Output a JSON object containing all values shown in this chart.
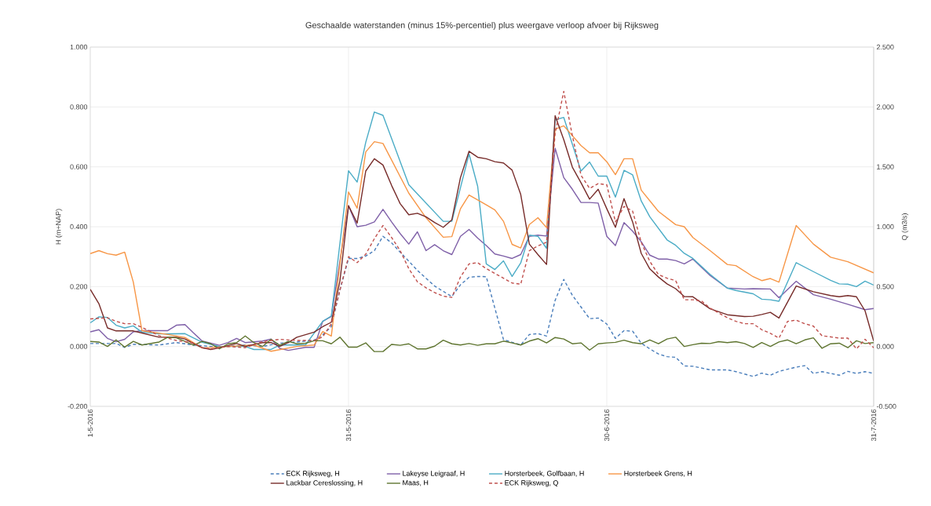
{
  "chart_data": {
    "type": "line",
    "title": "Geschaalde waterstanden (minus 15%-percentiel) plus weergave verloop afvoer bij Rijksweg",
    "ylabel": "H (m+NAP)",
    "y2label": "Q (m3/s)",
    "xlim": [
      "2016-05-01",
      "2016-07-31"
    ],
    "xticks": [
      {
        "value": "2016-05-01",
        "label": "1-5-2016"
      },
      {
        "value": "2016-05-31",
        "label": "31-5-2016"
      },
      {
        "value": "2016-06-30",
        "label": "30-6-2016"
      },
      {
        "value": "2016-07-31",
        "label": "31-7-2016"
      }
    ],
    "ylim": [
      -0.2,
      1.0
    ],
    "yticks": [
      {
        "value": -0.2,
        "label": "-0.200"
      },
      {
        "value": 0,
        "label": "0.000"
      },
      {
        "value": 0.2,
        "label": "0.200"
      },
      {
        "value": 0.4,
        "label": "0.400"
      },
      {
        "value": 0.6,
        "label": "0.600"
      },
      {
        "value": 0.8,
        "label": "0.800"
      },
      {
        "value": 1.0,
        "label": "1.000"
      }
    ],
    "y2lim": [
      -0.5,
      2.5
    ],
    "y2ticks": [
      {
        "value": -0.5,
        "label": "-0.500"
      },
      {
        "value": 0,
        "label": "0.000"
      },
      {
        "value": 0.5,
        "label": "0.500"
      },
      {
        "value": 1.0,
        "label": "1.000"
      },
      {
        "value": 1.5,
        "label": "1.500"
      },
      {
        "value": 2.0,
        "label": "2.000"
      },
      {
        "value": 2.5,
        "label": "2.500"
      }
    ],
    "grid": true,
    "legend": "bottom",
    "series": [
      {
        "name": "ECK Rijksweg, H",
        "color": "#4a7ebb",
        "line_style": "dashed",
        "x": [
          "2016-05-01",
          "2016-05-04",
          "2016-05-05",
          "2016-05-06",
          "2016-05-09",
          "2016-05-11",
          "2016-05-13",
          "2016-05-15",
          "2016-05-17",
          "2016-05-19",
          "2016-05-21",
          "2016-05-23",
          "2016-05-25",
          "2016-05-27",
          "2016-05-28",
          "2016-05-29",
          "2016-05-30",
          "2016-05-31",
          "2016-06-01",
          "2016-06-02",
          "2016-06-03",
          "2016-06-04",
          "2016-06-05",
          "2016-06-06",
          "2016-06-07",
          "2016-06-08",
          "2016-06-09",
          "2016-06-10",
          "2016-06-11",
          "2016-06-12",
          "2016-06-13",
          "2016-06-14",
          "2016-06-15",
          "2016-06-16",
          "2016-06-17",
          "2016-06-18",
          "2016-06-19",
          "2016-06-20",
          "2016-06-21",
          "2016-06-22",
          "2016-06-23",
          "2016-06-24",
          "2016-06-25",
          "2016-06-26",
          "2016-06-27",
          "2016-06-28",
          "2016-06-29",
          "2016-06-30",
          "2016-07-01",
          "2016-07-02",
          "2016-07-03",
          "2016-07-04",
          "2016-07-05",
          "2016-07-06",
          "2016-07-07",
          "2016-07-08",
          "2016-07-09",
          "2016-07-10",
          "2016-07-12",
          "2016-07-14",
          "2016-07-15",
          "2016-07-17",
          "2016-07-18",
          "2016-07-19",
          "2016-07-20",
          "2016-07-22",
          "2016-07-23",
          "2016-07-24",
          "2016-07-25",
          "2016-07-27",
          "2016-07-28",
          "2016-07-29",
          "2016-07-30",
          "2016-07-31"
        ],
        "values": [
          0.01,
          0.01,
          -0.003,
          0.007,
          0.005,
          0.013,
          0.005,
          0.0,
          0.0,
          0.005,
          0.0,
          0.011,
          0.015,
          0.021,
          0.039,
          0.066,
          0.189,
          0.294,
          0.294,
          0.302,
          0.32,
          0.368,
          0.346,
          0.315,
          0.285,
          0.254,
          0.228,
          0.202,
          0.184,
          0.167,
          0.206,
          0.231,
          0.234,
          0.233,
          0.128,
          0.023,
          0.014,
          0.005,
          0.04,
          0.043,
          0.035,
          0.154,
          0.224,
          0.171,
          0.132,
          0.093,
          0.095,
          0.075,
          0.027,
          0.053,
          0.051,
          0.011,
          -0.008,
          -0.025,
          -0.034,
          -0.036,
          -0.065,
          -0.066,
          -0.078,
          -0.078,
          -0.084,
          -0.1,
          -0.089,
          -0.096,
          -0.083,
          -0.069,
          -0.064,
          -0.09,
          -0.084,
          -0.096,
          -0.083,
          -0.09,
          -0.084,
          -0.09
        ]
      },
      {
        "name": "Lakeyse Leigraaf, H",
        "color": "#7f60a8",
        "line_style": "solid",
        "x": [
          "2016-05-01",
          "2016-05-02",
          "2016-05-03",
          "2016-05-04",
          "2016-05-05",
          "2016-05-06",
          "2016-05-07",
          "2016-05-10",
          "2016-05-11",
          "2016-05-12",
          "2016-05-13",
          "2016-05-14",
          "2016-05-16",
          "2016-05-17",
          "2016-05-18",
          "2016-05-19",
          "2016-05-21",
          "2016-05-22",
          "2016-05-23",
          "2016-05-24",
          "2016-05-26",
          "2016-05-27",
          "2016-05-28",
          "2016-05-29",
          "2016-05-31",
          "2016-06-01",
          "2016-06-02",
          "2016-06-03",
          "2016-06-04",
          "2016-06-05",
          "2016-06-06",
          "2016-06-07",
          "2016-06-08",
          "2016-06-09",
          "2016-06-10",
          "2016-06-11",
          "2016-06-12",
          "2016-06-13",
          "2016-06-14",
          "2016-06-15",
          "2016-06-16",
          "2016-06-17",
          "2016-06-18",
          "2016-06-19",
          "2016-06-20",
          "2016-06-21",
          "2016-06-22",
          "2016-06-23",
          "2016-06-24",
          "2016-06-25",
          "2016-06-26",
          "2016-06-27",
          "2016-06-28",
          "2016-06-29",
          "2016-06-30",
          "2016-07-01",
          "2016-07-02",
          "2016-07-03",
          "2016-07-04",
          "2016-07-05",
          "2016-07-06",
          "2016-07-07",
          "2016-07-08",
          "2016-07-09",
          "2016-07-10",
          "2016-07-12",
          "2016-07-14",
          "2016-07-16",
          "2016-07-17",
          "2016-07-19",
          "2016-07-20",
          "2016-07-22",
          "2016-07-24",
          "2016-07-26",
          "2016-07-28",
          "2016-07-30",
          "2016-07-31"
        ],
        "values": [
          0.049,
          0.056,
          0.027,
          0.016,
          0.024,
          0.049,
          0.053,
          0.053,
          0.071,
          0.073,
          0.045,
          0.018,
          0.004,
          0.013,
          0.027,
          0.013,
          0.018,
          0.025,
          -0.006,
          -0.013,
          -0.003,
          -0.003,
          0.084,
          0.1,
          0.47,
          0.4,
          0.405,
          0.416,
          0.458,
          0.416,
          0.377,
          0.342,
          0.383,
          0.32,
          0.34,
          0.32,
          0.307,
          0.368,
          0.391,
          0.362,
          0.337,
          0.309,
          0.302,
          0.294,
          0.307,
          0.368,
          0.372,
          0.369,
          0.662,
          0.564,
          0.525,
          0.481,
          0.481,
          0.479,
          0.368,
          0.337,
          0.414,
          0.385,
          0.35,
          0.305,
          0.292,
          0.292,
          0.287,
          0.276,
          0.292,
          0.237,
          0.195,
          0.192,
          0.193,
          0.192,
          0.163,
          0.218,
          0.173,
          0.158,
          0.141,
          0.123,
          0.127
        ]
      },
      {
        "name": "Horsterbeek, Golfbaan, H",
        "color": "#4bacc6",
        "line_style": "solid",
        "x": [
          "2016-05-01",
          "2016-05-02",
          "2016-05-03",
          "2016-05-04",
          "2016-05-05",
          "2016-05-06",
          "2016-05-07",
          "2016-05-09",
          "2016-05-12",
          "2016-05-14",
          "2016-05-16",
          "2016-05-19",
          "2016-05-20",
          "2016-05-22",
          "2016-05-23",
          "2016-05-26",
          "2016-05-28",
          "2016-05-29",
          "2016-05-31",
          "2016-06-01",
          "2016-06-02",
          "2016-06-03",
          "2016-06-04",
          "2016-06-07",
          "2016-06-11",
          "2016-06-12",
          "2016-06-14",
          "2016-06-15",
          "2016-06-16",
          "2016-06-17",
          "2016-06-18",
          "2016-06-19",
          "2016-06-20",
          "2016-06-21",
          "2016-06-22",
          "2016-06-23",
          "2016-06-24",
          "2016-06-25",
          "2016-06-27",
          "2016-06-28",
          "2016-06-29",
          "2016-06-30",
          "2016-07-01",
          "2016-07-02",
          "2016-07-03",
          "2016-07-04",
          "2016-07-05",
          "2016-07-07",
          "2016-07-08",
          "2016-07-09",
          "2016-07-10",
          "2016-07-12",
          "2016-07-14",
          "2016-07-15",
          "2016-07-17",
          "2016-07-18",
          "2016-07-19",
          "2016-07-20",
          "2016-07-22",
          "2016-07-24",
          "2016-07-26",
          "2016-07-27",
          "2016-07-28",
          "2016-07-29",
          "2016-07-30",
          "2016-07-31"
        ],
        "values": [
          0.079,
          0.099,
          0.097,
          0.071,
          0.062,
          0.069,
          0.048,
          0.042,
          0.043,
          0.014,
          0.0,
          0.0,
          -0.01,
          -0.01,
          0.005,
          0.005,
          0.084,
          0.102,
          0.587,
          0.549,
          0.682,
          0.783,
          0.772,
          0.54,
          0.418,
          0.418,
          0.643,
          0.535,
          0.276,
          0.257,
          0.286,
          0.234,
          0.279,
          0.372,
          0.368,
          0.328,
          0.757,
          0.765,
          0.586,
          0.616,
          0.569,
          0.569,
          0.499,
          0.588,
          0.573,
          0.486,
          0.433,
          0.356,
          0.338,
          0.311,
          0.294,
          0.241,
          0.195,
          0.187,
          0.176,
          0.158,
          0.156,
          0.151,
          0.28,
          0.25,
          0.221,
          0.209,
          0.208,
          0.2,
          0.218,
          0.205
        ]
      },
      {
        "name": "Horsterbeek Grens, H",
        "color": "#f79646",
        "line_style": "solid",
        "x": [
          "2016-05-01",
          "2016-05-02",
          "2016-05-03",
          "2016-05-04",
          "2016-05-05",
          "2016-05-06",
          "2016-05-07",
          "2016-05-10",
          "2016-05-12",
          "2016-05-14",
          "2016-05-17",
          "2016-05-20",
          "2016-05-22",
          "2016-05-25",
          "2016-05-27",
          "2016-05-28",
          "2016-05-29",
          "2016-05-31",
          "2016-06-01",
          "2016-06-02",
          "2016-06-03",
          "2016-06-04",
          "2016-06-07",
          "2016-06-09",
          "2016-06-11",
          "2016-06-12",
          "2016-06-13",
          "2016-06-14",
          "2016-06-16",
          "2016-06-17",
          "2016-06-18",
          "2016-06-19",
          "2016-06-20",
          "2016-06-21",
          "2016-06-22",
          "2016-06-23",
          "2016-06-24",
          "2016-06-25",
          "2016-06-27",
          "2016-06-28",
          "2016-06-29",
          "2016-06-30",
          "2016-07-01",
          "2016-07-02",
          "2016-07-03",
          "2016-07-04",
          "2016-07-06",
          "2016-07-08",
          "2016-07-09",
          "2016-07-10",
          "2016-07-12",
          "2016-07-14",
          "2016-07-15",
          "2016-07-17",
          "2016-07-18",
          "2016-07-19",
          "2016-07-20",
          "2016-07-22",
          "2016-07-24",
          "2016-07-26",
          "2016-07-28",
          "2016-07-31"
        ],
        "values": [
          0.31,
          0.32,
          0.31,
          0.305,
          0.315,
          0.215,
          0.053,
          0.04,
          0.03,
          -0.005,
          0.0,
          0.005,
          -0.016,
          0.0,
          0.005,
          0.05,
          0.035,
          0.516,
          0.462,
          0.65,
          0.684,
          0.678,
          0.512,
          0.43,
          0.365,
          0.367,
          0.46,
          0.506,
          0.473,
          0.456,
          0.418,
          0.341,
          0.329,
          0.407,
          0.43,
          0.397,
          0.726,
          0.737,
          0.671,
          0.647,
          0.647,
          0.617,
          0.574,
          0.627,
          0.627,
          0.522,
          0.451,
          0.407,
          0.4,
          0.364,
          0.32,
          0.274,
          0.27,
          0.233,
          0.22,
          0.227,
          0.215,
          0.404,
          0.342,
          0.298,
          0.283,
          0.246
        ]
      },
      {
        "name": "Lackbar Cereslossing, H",
        "color": "#772c2a",
        "line_style": "solid",
        "x": [
          "2016-05-01",
          "2016-05-02",
          "2016-05-03",
          "2016-05-04",
          "2016-05-06",
          "2016-05-07",
          "2016-05-09",
          "2016-05-11",
          "2016-05-12",
          "2016-05-13",
          "2016-05-14",
          "2016-05-15",
          "2016-05-16",
          "2016-05-18",
          "2016-05-19",
          "2016-05-21",
          "2016-05-22",
          "2016-05-23",
          "2016-05-24",
          "2016-05-25",
          "2016-05-27",
          "2016-05-28",
          "2016-05-29",
          "2016-05-30",
          "2016-05-31",
          "2016-06-01",
          "2016-06-02",
          "2016-06-03",
          "2016-06-04",
          "2016-06-05",
          "2016-06-06",
          "2016-06-07",
          "2016-06-08",
          "2016-06-09",
          "2016-06-10",
          "2016-06-11",
          "2016-06-12",
          "2016-06-13",
          "2016-06-14",
          "2016-06-15",
          "2016-06-16",
          "2016-06-17",
          "2016-06-18",
          "2016-06-19",
          "2016-06-20",
          "2016-06-21",
          "2016-06-22",
          "2016-06-23",
          "2016-06-24",
          "2016-06-25",
          "2016-06-26",
          "2016-06-27",
          "2016-06-28",
          "2016-06-29",
          "2016-06-30",
          "2016-07-01",
          "2016-07-02",
          "2016-07-03",
          "2016-07-04",
          "2016-07-05",
          "2016-07-06",
          "2016-07-07",
          "2016-07-08",
          "2016-07-09",
          "2016-07-10",
          "2016-07-12",
          "2016-07-14",
          "2016-07-16",
          "2016-07-17",
          "2016-07-18",
          "2016-07-19",
          "2016-07-20",
          "2016-07-22",
          "2016-07-24",
          "2016-07-26",
          "2016-07-27",
          "2016-07-28",
          "2016-07-29",
          "2016-07-30",
          "2016-07-31"
        ],
        "values": [
          0.191,
          0.143,
          0.062,
          0.052,
          0.052,
          0.045,
          0.031,
          0.031,
          0.025,
          0.009,
          -0.004,
          -0.01,
          -0.004,
          0.01,
          0.0,
          0.013,
          0.013,
          0.0,
          0.013,
          0.031,
          0.048,
          0.066,
          0.081,
          0.219,
          0.47,
          0.412,
          0.586,
          0.627,
          0.606,
          0.538,
          0.477,
          0.44,
          0.445,
          0.433,
          0.414,
          0.398,
          0.423,
          0.564,
          0.652,
          0.632,
          0.627,
          0.617,
          0.613,
          0.589,
          0.508,
          0.342,
          0.307,
          0.274,
          0.771,
          0.691,
          0.599,
          0.547,
          0.492,
          0.525,
          0.46,
          0.398,
          0.494,
          0.416,
          0.311,
          0.259,
          0.232,
          0.209,
          0.193,
          0.167,
          0.166,
          0.126,
          0.106,
          0.1,
          0.101,
          0.107,
          0.114,
          0.095,
          0.202,
          0.183,
          0.17,
          0.166,
          0.17,
          0.166,
          0.119,
          0.018
        ]
      },
      {
        "name": "Maas, H",
        "color": "#5f7530",
        "line_style": "solid",
        "x": [
          "2016-05-01",
          "2016-05-02",
          "2016-05-03",
          "2016-05-04",
          "2016-05-05",
          "2016-05-06",
          "2016-05-07",
          "2016-05-09",
          "2016-05-10",
          "2016-05-11",
          "2016-05-12",
          "2016-05-13",
          "2016-05-14",
          "2016-05-15",
          "2016-05-16",
          "2016-05-17",
          "2016-05-18",
          "2016-05-19",
          "2016-05-20",
          "2016-05-21",
          "2016-05-22",
          "2016-05-23",
          "2016-05-24",
          "2016-05-25",
          "2016-05-26",
          "2016-05-27",
          "2016-05-28",
          "2016-05-29",
          "2016-05-30",
          "2016-05-31",
          "2016-06-01",
          "2016-06-02",
          "2016-06-03",
          "2016-06-04",
          "2016-06-05",
          "2016-06-06",
          "2016-06-07",
          "2016-06-08",
          "2016-06-09",
          "2016-06-10",
          "2016-06-11",
          "2016-06-12",
          "2016-06-13",
          "2016-06-14",
          "2016-06-15",
          "2016-06-16",
          "2016-06-17",
          "2016-06-18",
          "2016-06-19",
          "2016-06-20",
          "2016-06-21",
          "2016-06-22",
          "2016-06-23",
          "2016-06-24",
          "2016-06-25",
          "2016-06-26",
          "2016-06-27",
          "2016-06-28",
          "2016-06-29",
          "2016-06-30",
          "2016-07-01",
          "2016-07-02",
          "2016-07-03",
          "2016-07-04",
          "2016-07-05",
          "2016-07-06",
          "2016-07-07",
          "2016-07-08",
          "2016-07-09",
          "2016-07-10",
          "2016-07-11",
          "2016-07-12",
          "2016-07-13",
          "2016-07-14",
          "2016-07-15",
          "2016-07-16",
          "2016-07-17",
          "2016-07-18",
          "2016-07-19",
          "2016-07-20",
          "2016-07-21",
          "2016-07-22",
          "2016-07-23",
          "2016-07-24",
          "2016-07-25",
          "2016-07-26",
          "2016-07-27",
          "2016-07-28",
          "2016-07-29",
          "2016-07-30",
          "2016-07-31"
        ],
        "values": [
          0.017,
          0.015,
          0.0,
          0.022,
          -0.002,
          0.017,
          0.005,
          0.015,
          0.031,
          0.029,
          0.017,
          0.004,
          0.017,
          0.009,
          -0.008,
          0.009,
          0.013,
          0.035,
          0.013,
          0.0,
          0.024,
          0.004,
          0.017,
          0.009,
          0.011,
          0.019,
          0.019,
          0.009,
          0.031,
          -0.002,
          -0.002,
          0.012,
          -0.017,
          -0.017,
          0.007,
          0.004,
          0.009,
          -0.008,
          -0.008,
          0.001,
          0.021,
          0.009,
          0.005,
          0.01,
          0.004,
          0.009,
          0.009,
          0.018,
          0.012,
          0.005,
          0.018,
          0.026,
          0.012,
          0.03,
          0.025,
          0.009,
          0.012,
          -0.012,
          0.009,
          0.012,
          0.014,
          0.021,
          0.013,
          0.009,
          0.022,
          0.009,
          0.025,
          0.031,
          0.0,
          0.006,
          0.011,
          0.01,
          0.016,
          0.013,
          0.016,
          0.01,
          -0.003,
          0.013,
          0.0,
          0.015,
          0.022,
          0.009,
          0.022,
          0.029,
          -0.006,
          0.009,
          0.011,
          -0.004,
          0.019,
          0.01,
          0.013
        ]
      },
      {
        "name": "ECK Rijksweg, Q",
        "color": "#c0504d",
        "line_style": "dashed",
        "axis": "y2",
        "x": [
          "2016-05-01",
          "2016-05-03",
          "2016-05-04",
          "2016-05-05",
          "2016-05-06",
          "2016-05-07",
          "2016-05-09",
          "2016-05-11",
          "2016-05-13",
          "2016-05-14",
          "2016-05-15",
          "2016-05-17",
          "2016-05-19",
          "2016-05-21",
          "2016-05-23",
          "2016-05-25",
          "2016-05-27",
          "2016-05-28",
          "2016-05-29",
          "2016-05-30",
          "2016-05-31",
          "2016-06-01",
          "2016-06-02",
          "2016-06-03",
          "2016-06-04",
          "2016-06-05",
          "2016-06-06",
          "2016-06-07",
          "2016-06-08",
          "2016-06-09",
          "2016-06-10",
          "2016-06-11",
          "2016-06-12",
          "2016-06-13",
          "2016-06-14",
          "2016-06-15",
          "2016-06-16",
          "2016-06-17",
          "2016-06-18",
          "2016-06-19",
          "2016-06-20",
          "2016-06-21",
          "2016-06-22",
          "2016-06-23",
          "2016-06-24",
          "2016-06-25",
          "2016-06-26",
          "2016-06-27",
          "2016-06-28",
          "2016-06-29",
          "2016-06-30",
          "2016-07-01",
          "2016-07-02",
          "2016-07-03",
          "2016-07-04",
          "2016-07-05",
          "2016-07-06",
          "2016-07-07",
          "2016-07-08",
          "2016-07-09",
          "2016-07-10",
          "2016-07-11",
          "2016-07-12",
          "2016-07-14",
          "2016-07-15",
          "2016-07-16",
          "2016-07-17",
          "2016-07-18",
          "2016-07-19",
          "2016-07-20",
          "2016-07-21",
          "2016-07-22",
          "2016-07-23",
          "2016-07-24",
          "2016-07-25",
          "2016-07-27",
          "2016-07-28",
          "2016-07-29",
          "2016-07-30",
          "2016-07-31"
        ],
        "values": [
          0.23,
          0.24,
          0.21,
          0.19,
          0.19,
          0.16,
          0.09,
          0.05,
          0.03,
          -0.01,
          -0.02,
          0.0,
          -0.01,
          0.04,
          0.06,
          0.05,
          0.05,
          0.08,
          0.19,
          0.47,
          0.75,
          0.7,
          0.77,
          0.9,
          1.01,
          0.91,
          0.8,
          0.65,
          0.54,
          0.49,
          0.45,
          0.42,
          0.41,
          0.58,
          0.69,
          0.7,
          0.65,
          0.61,
          0.57,
          0.53,
          0.52,
          0.8,
          0.84,
          0.87,
          1.78,
          2.13,
          1.76,
          1.43,
          1.32,
          1.36,
          1.35,
          1.04,
          1.17,
          1.13,
          0.87,
          0.71,
          0.6,
          0.57,
          0.55,
          0.39,
          0.39,
          0.38,
          0.32,
          0.24,
          0.21,
          0.19,
          0.19,
          0.14,
          0.11,
          0.07,
          0.21,
          0.22,
          0.19,
          0.17,
          0.09,
          0.07,
          0.07,
          -0.02,
          0.06,
          -0.01
        ]
      }
    ]
  }
}
